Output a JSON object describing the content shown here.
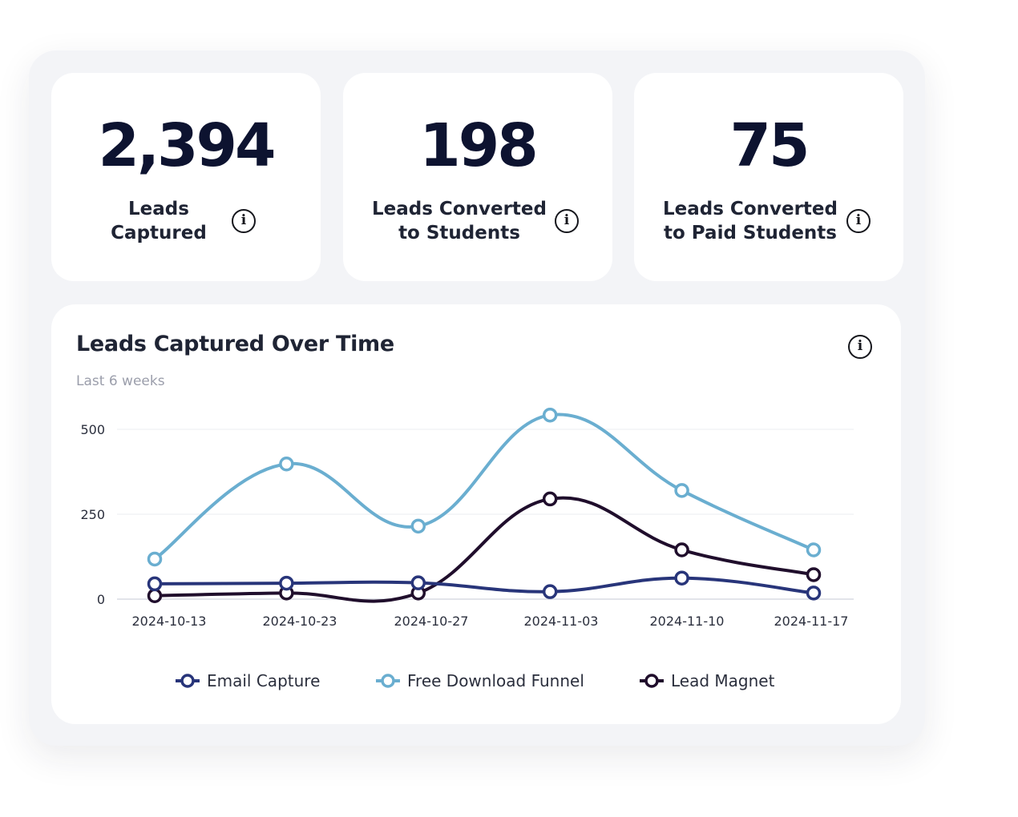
{
  "kpis": [
    {
      "value": "2,394",
      "label": "Leads Captured"
    },
    {
      "value": "198",
      "label": "Leads Converted to Students"
    },
    {
      "value": "75",
      "label": "Leads Converted to Paid Students"
    }
  ],
  "info_glyph": "i",
  "chart_data": {
    "type": "line",
    "title": "Leads Captured Over Time",
    "subtitle": "Last 6 weeks",
    "xlabel": "",
    "ylabel": "",
    "categories": [
      "2024-10-13",
      "2024-10-23",
      "2024-10-27",
      "2024-11-03",
      "2024-11-10",
      "2024-11-17"
    ],
    "yticks": [
      "0",
      "250",
      "500"
    ],
    "ylim": [
      0,
      500
    ],
    "grid": true,
    "legend": "bottom",
    "series": [
      {
        "name": "Email Capture",
        "color": "#28357a",
        "values": [
          45,
          47,
          48,
          22,
          62,
          18
        ]
      },
      {
        "name": "Free Download Funnel",
        "color": "#6aaed0",
        "values": [
          118,
          398,
          215,
          542,
          320,
          145
        ]
      },
      {
        "name": "Lead Magnet",
        "color": "#200e2c",
        "values": [
          10,
          18,
          18,
          295,
          145,
          72
        ]
      }
    ]
  }
}
